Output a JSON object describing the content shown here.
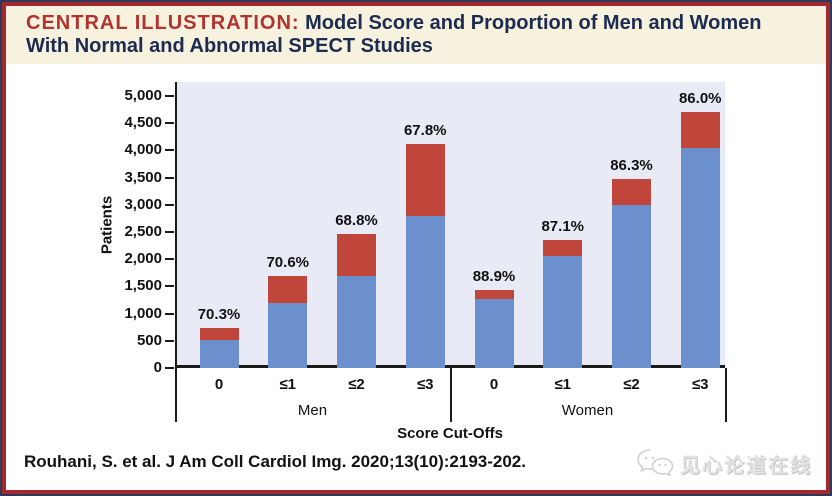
{
  "header": {
    "label": "CENTRAL ILLUSTRATION:",
    "title_line1": "Model Score and Proportion of Men and Women",
    "title_line2": "With Normal and Abnormal SPECT Studies",
    "label_color": "#b23230",
    "title_color": "#1c2b50",
    "background": "#f7f2de"
  },
  "chart_data": {
    "type": "bar",
    "stacked": true,
    "title": "",
    "ylabel": "Patients",
    "xlabel": "Score Cut-Offs",
    "ylim": [
      0,
      5000
    ],
    "ytick_step": 500,
    "ytick_labels": [
      "0",
      "500",
      "1,000",
      "1,500",
      "2,000",
      "2,500",
      "3,000",
      "3,500",
      "4,000",
      "4,500",
      "5,000"
    ],
    "grid": false,
    "legend": "none",
    "plot_background": "#e8ebf5",
    "series_colors": {
      "blue_bottom_segment": "#6c8fce",
      "red_top_segment": "#c0453a"
    },
    "categories": [
      "0",
      "≤1",
      "≤2",
      "≤3"
    ],
    "groups": [
      {
        "label": "Men",
        "bars": [
          {
            "cutoff": "0",
            "blue": 520,
            "red": 220,
            "total": 740,
            "pct_label": "70.3%"
          },
          {
            "cutoff": "≤1",
            "blue": 1200,
            "red": 500,
            "total": 1700,
            "pct_label": "70.6%"
          },
          {
            "cutoff": "≤2",
            "blue": 1700,
            "red": 770,
            "total": 2470,
            "pct_label": "68.8%"
          },
          {
            "cutoff": "≤3",
            "blue": 2800,
            "red": 1320,
            "total": 4120,
            "pct_label": "67.8%"
          }
        ]
      },
      {
        "label": "Women",
        "bars": [
          {
            "cutoff": "0",
            "blue": 1270,
            "red": 160,
            "total": 1430,
            "pct_label": "88.9%"
          },
          {
            "cutoff": "≤1",
            "blue": 2050,
            "red": 310,
            "total": 2360,
            "pct_label": "87.1%"
          },
          {
            "cutoff": "≤2",
            "blue": 3000,
            "red": 480,
            "total": 3480,
            "pct_label": "86.3%"
          },
          {
            "cutoff": "≤3",
            "blue": 4050,
            "red": 660,
            "total": 4710,
            "pct_label": "86.0%"
          }
        ]
      }
    ]
  },
  "footer": {
    "citation": "Rouhani, S. et al. J Am Coll Cardiol Img. 2020;13(10):2193-202.",
    "watermark": "见心论道在线"
  },
  "frame": {
    "outer_border": "#2e3a5a",
    "red_border": "#a2292e"
  }
}
